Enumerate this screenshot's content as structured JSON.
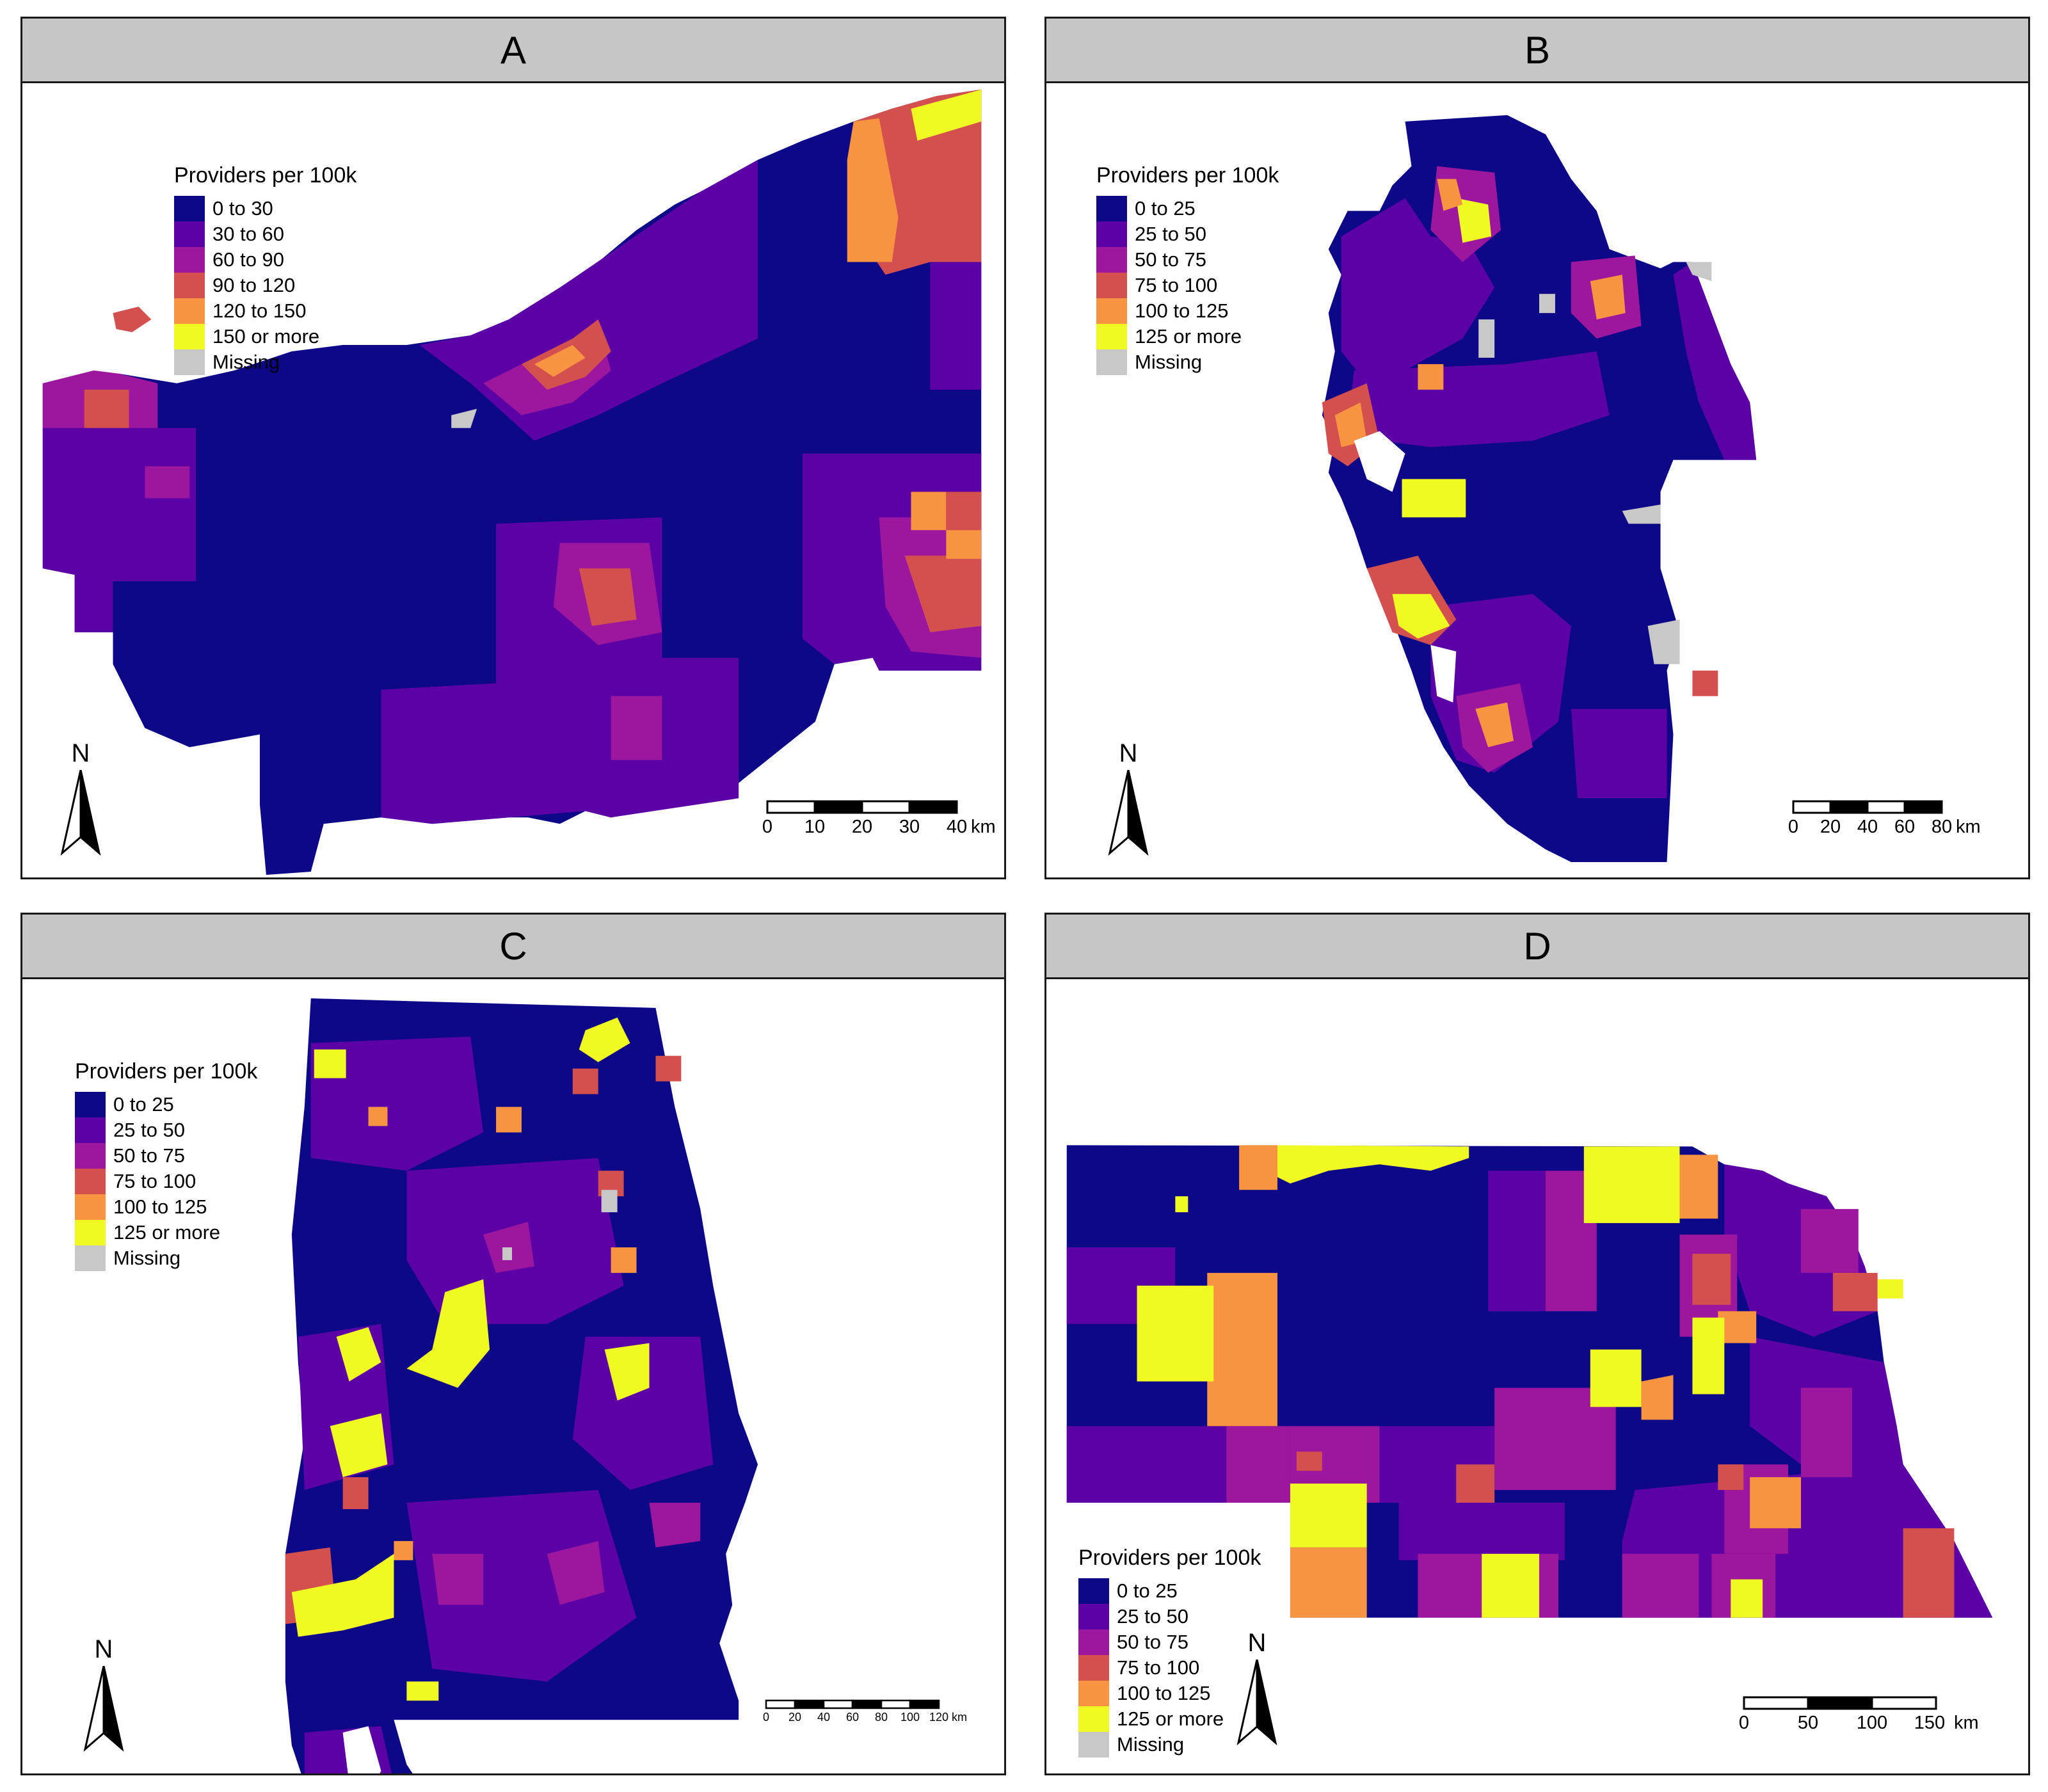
{
  "colors": {
    "c1": "#0d0887",
    "c2": "#5c01a6",
    "c3": "#9c179e",
    "c4": "#cc4778",
    "c5": "#f89441",
    "c6": "#f0f921",
    "missing": "#c8c8c8"
  },
  "panels": [
    {
      "label": "A",
      "legend": {
        "title": "Providers per 100k",
        "items": [
          {
            "label": "0 to 30",
            "color": "#0d0887"
          },
          {
            "label": "30 to 60",
            "color": "#5c01a6"
          },
          {
            "label": "60 to 90",
            "color": "#9c179e"
          },
          {
            "label": "90 to 120",
            "color": "#d4504f"
          },
          {
            "label": "120 to 150",
            "color": "#f89441"
          },
          {
            "label": "150 or more",
            "color": "#f0f921"
          },
          {
            "label": "Missing",
            "color": "#c8c8c8"
          }
        ]
      },
      "north_label": "N",
      "scale": {
        "ticks": [
          "0",
          "10",
          "20",
          "30",
          "40"
        ],
        "unit": "km"
      }
    },
    {
      "label": "B",
      "legend": {
        "title": "Providers per 100k",
        "items": [
          {
            "label": "0 to 25",
            "color": "#0d0887"
          },
          {
            "label": "25 to 50",
            "color": "#5c01a6"
          },
          {
            "label": "50 to 75",
            "color": "#9c179e"
          },
          {
            "label": "75 to 100",
            "color": "#d4504f"
          },
          {
            "label": "100 to 125",
            "color": "#f89441"
          },
          {
            "label": "125 or more",
            "color": "#f0f921"
          },
          {
            "label": "Missing",
            "color": "#c8c8c8"
          }
        ]
      },
      "north_label": "N",
      "scale": {
        "ticks": [
          "0",
          "20",
          "40",
          "60",
          "80"
        ],
        "unit": "km"
      }
    },
    {
      "label": "C",
      "legend": {
        "title": "Providers per 100k",
        "items": [
          {
            "label": "0 to 25",
            "color": "#0d0887"
          },
          {
            "label": "25 to 50",
            "color": "#5c01a6"
          },
          {
            "label": "50 to 75",
            "color": "#9c179e"
          },
          {
            "label": "75 to 100",
            "color": "#d4504f"
          },
          {
            "label": "100 to 125",
            "color": "#f89441"
          },
          {
            "label": "125 or more",
            "color": "#f0f921"
          },
          {
            "label": "Missing",
            "color": "#c8c8c8"
          }
        ]
      },
      "north_label": "N",
      "scale": {
        "ticks": [
          "0",
          "20",
          "40",
          "60",
          "80",
          "100",
          "120"
        ],
        "unit": "km"
      }
    },
    {
      "label": "D",
      "legend": {
        "title": "Providers per 100k",
        "items": [
          {
            "label": "0 to 25",
            "color": "#0d0887"
          },
          {
            "label": "25 to 50",
            "color": "#5c01a6"
          },
          {
            "label": "50 to 75",
            "color": "#9c179e"
          },
          {
            "label": "75 to 100",
            "color": "#d4504f"
          },
          {
            "label": "100 to 125",
            "color": "#f89441"
          },
          {
            "label": "125 or more",
            "color": "#f0f921"
          },
          {
            "label": "Missing",
            "color": "#c8c8c8"
          }
        ]
      },
      "north_label": "N",
      "scale": {
        "ticks": [
          "0",
          "50",
          "100",
          "150"
        ],
        "unit": "km"
      }
    }
  ]
}
